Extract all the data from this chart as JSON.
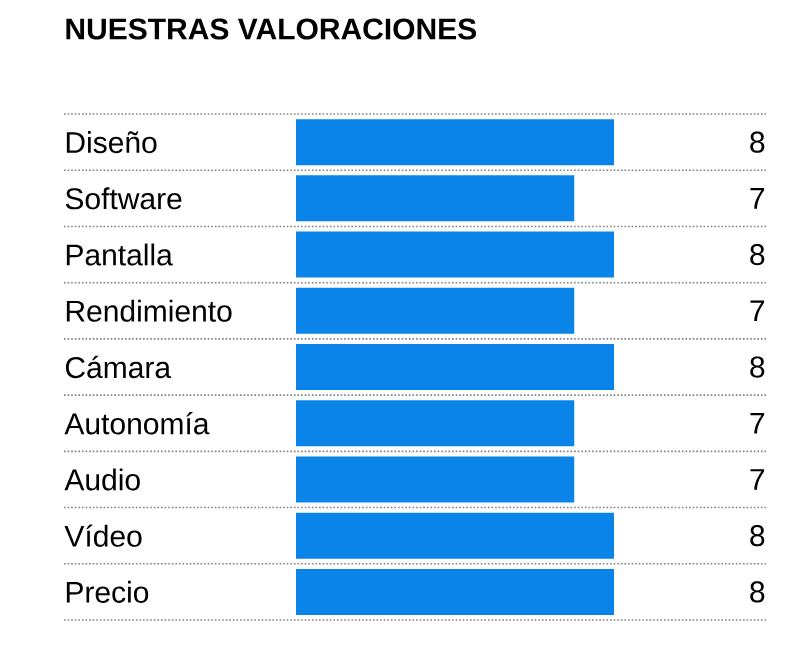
{
  "chart_data": {
    "type": "bar",
    "orientation": "horizontal",
    "title": "NUESTRAS VALORACIONES",
    "categories": [
      "Diseño",
      "Software",
      "Pantalla",
      "Rendimiento",
      "Cámara",
      "Autonomía",
      "Audio",
      "Vídeo",
      "Precio"
    ],
    "values": [
      8,
      7,
      8,
      7,
      8,
      7,
      7,
      8,
      8
    ],
    "color": "#0a84e8",
    "data_labels": true,
    "grid": "y"
  }
}
